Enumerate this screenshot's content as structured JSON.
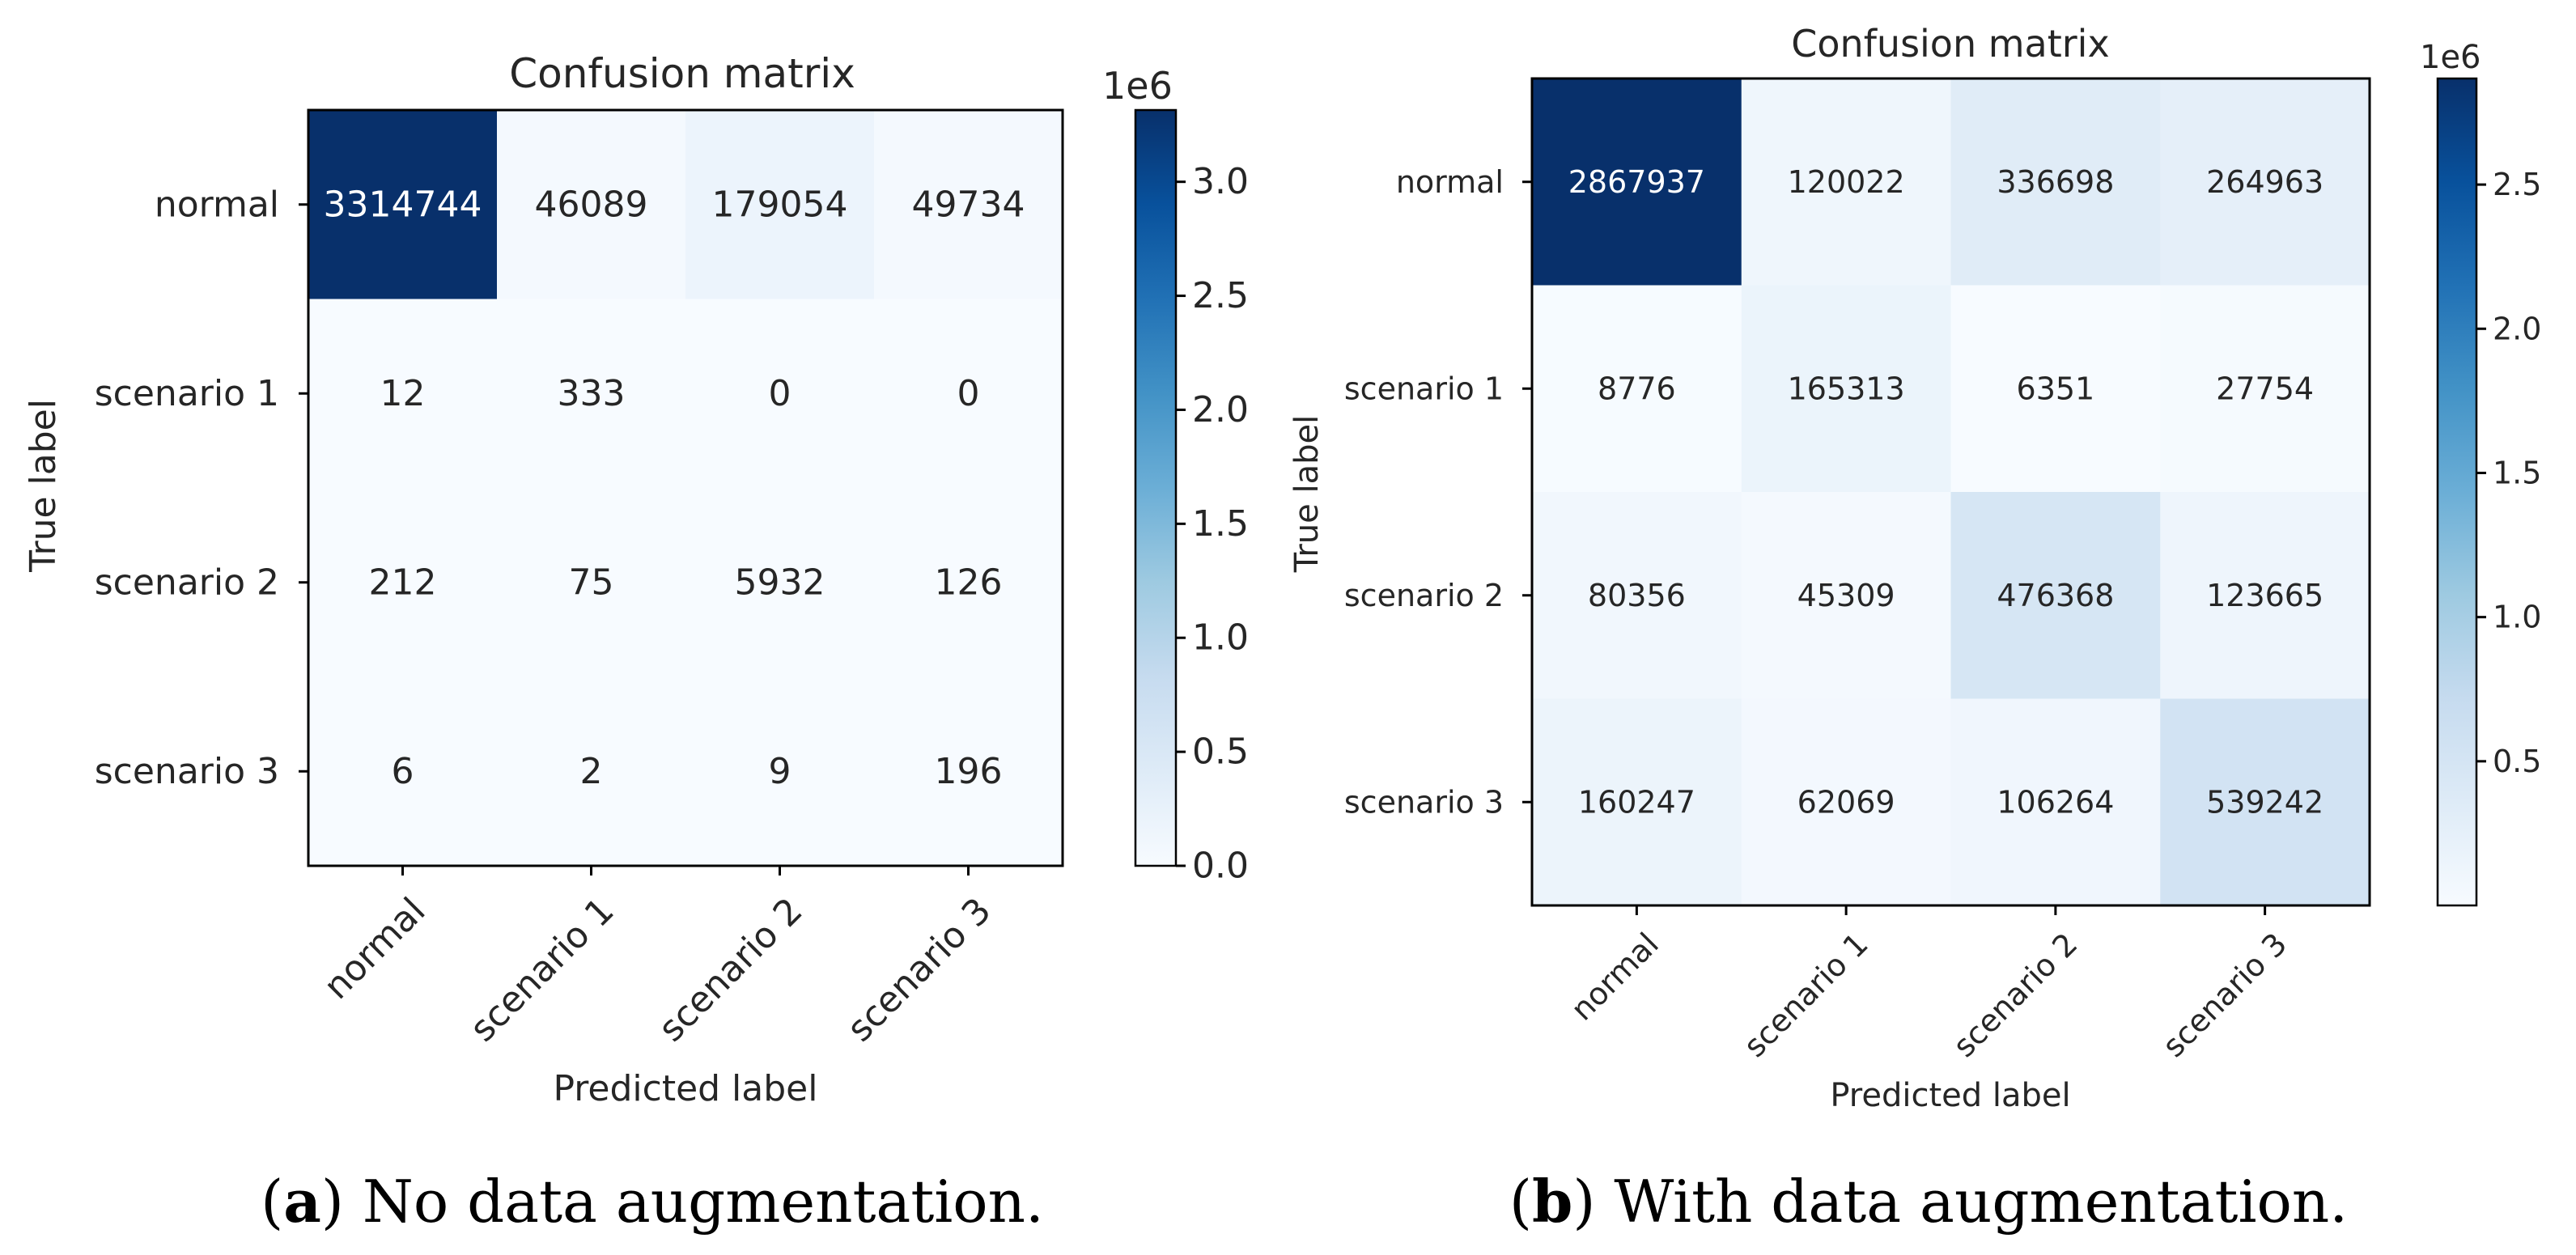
{
  "chart_data": [
    {
      "type": "heatmap",
      "title": "Confusion matrix",
      "xlabel": "Predicted label",
      "ylabel": "True label",
      "x_categories": [
        "normal",
        "scenario 1",
        "scenario 2",
        "scenario 3"
      ],
      "y_categories": [
        "normal",
        "scenario 1",
        "scenario 2",
        "scenario 3"
      ],
      "values": [
        [
          3314744,
          46089,
          179054,
          49734
        ],
        [
          12,
          333,
          0,
          0
        ],
        [
          212,
          75,
          5932,
          126
        ],
        [
          6,
          2,
          9,
          196
        ]
      ],
      "colormap": "Blues",
      "colorbar": {
        "multiplier_label": "1e6",
        "range": [
          0,
          3314744
        ],
        "ticks": [
          0.0,
          0.5,
          1.0,
          1.5,
          2.0,
          2.5,
          3.0
        ],
        "tick_labels": [
          "0.0",
          "0.5",
          "1.0",
          "1.5",
          "2.0",
          "2.5",
          "3.0"
        ]
      },
      "caption_letter": "a",
      "caption_text": "No data augmentation."
    },
    {
      "type": "heatmap",
      "title": "Confusion matrix",
      "xlabel": "Predicted label",
      "ylabel": "True label",
      "x_categories": [
        "normal",
        "scenario 1",
        "scenario 2",
        "scenario 3"
      ],
      "y_categories": [
        "normal",
        "scenario 1",
        "scenario 2",
        "scenario 3"
      ],
      "values": [
        [
          2867937,
          120022,
          336698,
          264963
        ],
        [
          8776,
          165313,
          6351,
          27754
        ],
        [
          80356,
          45309,
          476368,
          123665
        ],
        [
          160247,
          62069,
          106264,
          539242
        ]
      ],
      "colormap": "Blues",
      "colorbar": {
        "multiplier_label": "1e6",
        "range": [
          2,
          2867937
        ],
        "ticks": [
          0.5,
          1.0,
          1.5,
          2.0,
          2.5
        ],
        "tick_labels": [
          "0.5",
          "1.0",
          "1.5",
          "2.0",
          "2.5"
        ]
      },
      "caption_letter": "b",
      "caption_text": "With data augmentation."
    }
  ]
}
